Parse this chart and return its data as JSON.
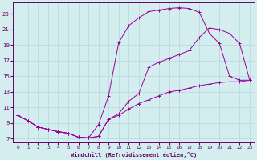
{
  "xlabel": "Windchill (Refroidissement éolien,°C)",
  "bg_color": "#d4eef0",
  "line_color": "#990099",
  "grid_color": "#b8d8dc",
  "axis_color": "#660066",
  "xlim": [
    -0.5,
    23.5
  ],
  "ylim": [
    6.5,
    24.5
  ],
  "xticks": [
    0,
    1,
    2,
    3,
    4,
    5,
    6,
    7,
    8,
    9,
    10,
    11,
    12,
    13,
    14,
    15,
    16,
    17,
    18,
    19,
    20,
    21,
    22,
    23
  ],
  "yticks": [
    7,
    9,
    11,
    13,
    15,
    17,
    19,
    21,
    23
  ],
  "line1_x": [
    0,
    1,
    2,
    3,
    4,
    5,
    6,
    7,
    8,
    9,
    10,
    11,
    12,
    13,
    14,
    15,
    16,
    17,
    18,
    19,
    20,
    21,
    22,
    23
  ],
  "line1_y": [
    10,
    9.3,
    8.5,
    8.2,
    7.9,
    7.7,
    7.2,
    7.1,
    8.8,
    12.5,
    19.3,
    21.5,
    22.5,
    23.3,
    23.5,
    23.7,
    23.8,
    23.7,
    23.2,
    20.5,
    19.2,
    15.0,
    14.5,
    14.5
  ],
  "line2_x": [
    0,
    1,
    2,
    3,
    4,
    5,
    6,
    7,
    8,
    9,
    10,
    11,
    12,
    13,
    14,
    15,
    16,
    17,
    18,
    19,
    20,
    21,
    22,
    23
  ],
  "line2_y": [
    10,
    9.3,
    8.5,
    8.2,
    7.9,
    7.7,
    7.2,
    7.1,
    7.3,
    9.5,
    10.2,
    11.8,
    12.8,
    16.2,
    16.8,
    17.3,
    17.8,
    18.3,
    20.0,
    21.2,
    21.0,
    20.5,
    19.2,
    14.5
  ],
  "line3_x": [
    0,
    1,
    2,
    3,
    4,
    5,
    6,
    7,
    8,
    9,
    10,
    11,
    12,
    13,
    14,
    15,
    16,
    17,
    18,
    19,
    20,
    21,
    22,
    23
  ],
  "line3_y": [
    10,
    9.3,
    8.5,
    8.2,
    7.9,
    7.7,
    7.2,
    7.1,
    7.3,
    9.5,
    10.0,
    10.8,
    11.5,
    12.0,
    12.5,
    13.0,
    13.2,
    13.5,
    13.8,
    14.0,
    14.2,
    14.3,
    14.3,
    14.5
  ]
}
